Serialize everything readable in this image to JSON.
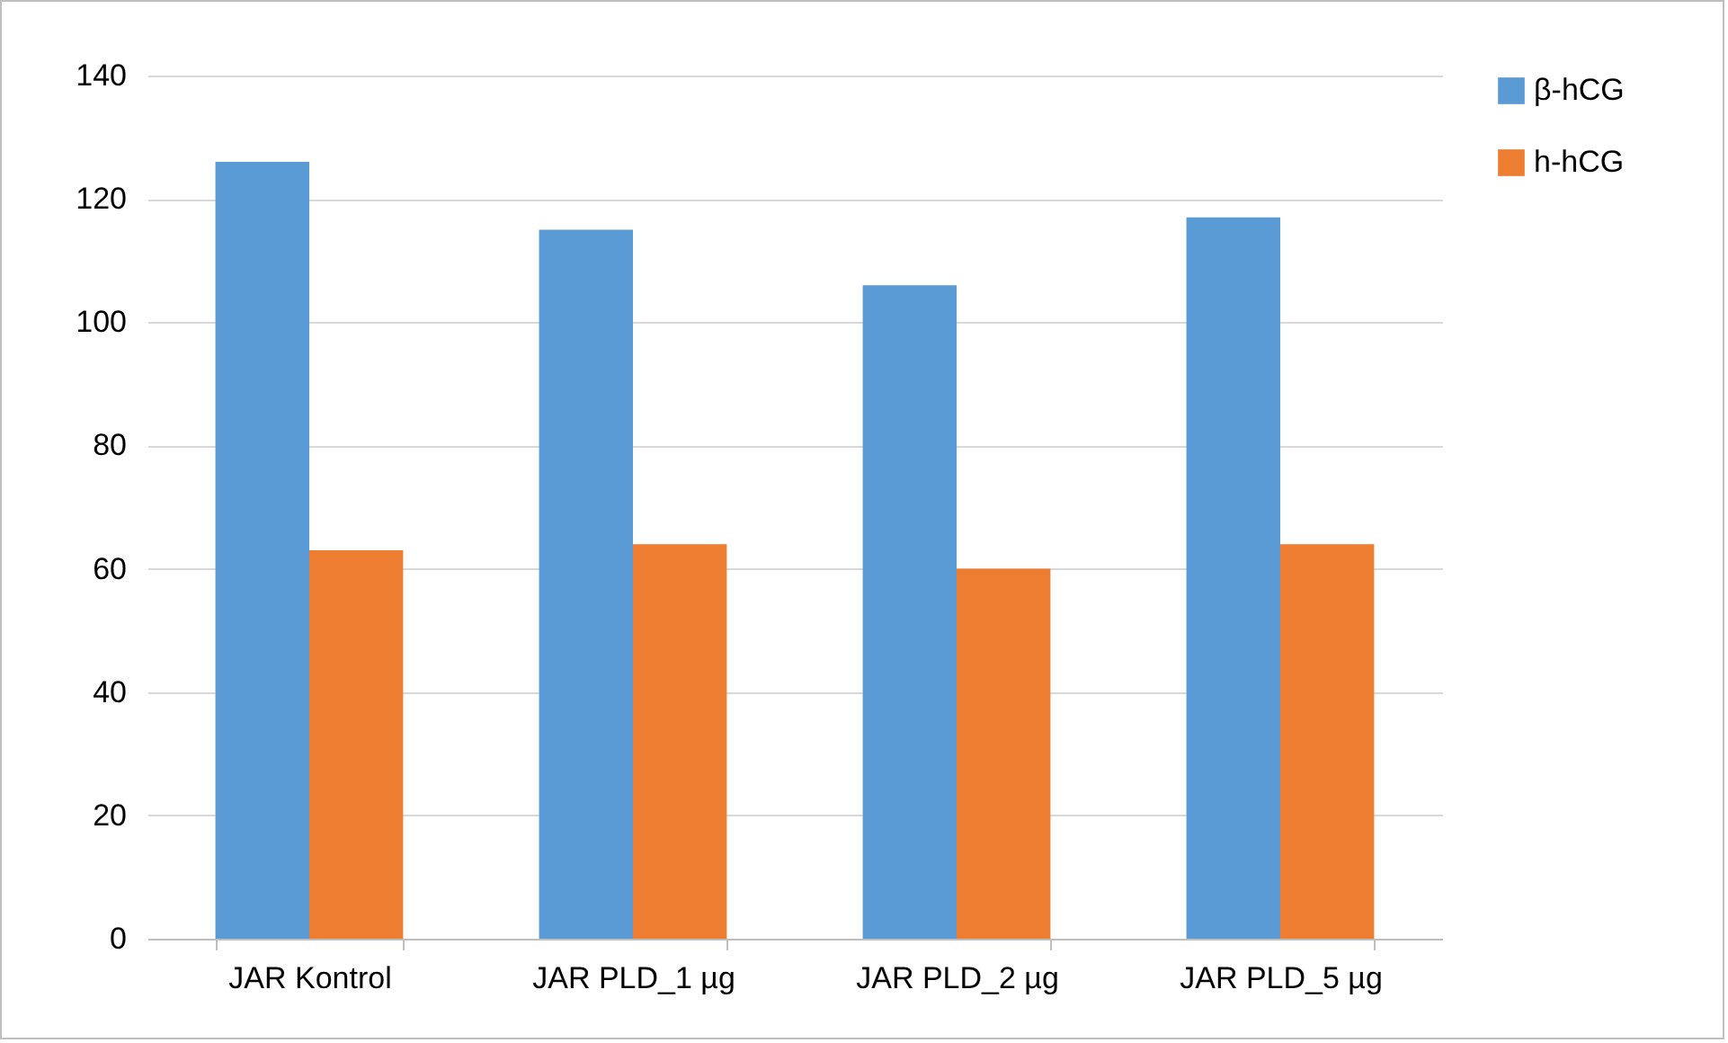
{
  "chart_data": {
    "type": "bar",
    "categories": [
      "JAR Kontrol",
      "JAR PLD_1 µg",
      "JAR PLD_2 µg",
      "JAR PLD_5 µg"
    ],
    "series": [
      {
        "name": "β-hCG",
        "color": "#5b9bd5",
        "values": [
          126,
          115,
          106,
          117
        ]
      },
      {
        "name": "h-hCG",
        "color": "#ed7d31",
        "values": [
          63,
          64,
          60,
          64
        ]
      }
    ],
    "ylim": [
      0,
      140
    ],
    "yticks": [
      0,
      20,
      40,
      60,
      80,
      100,
      120,
      140
    ],
    "grid": "y",
    "legend": "right"
  }
}
